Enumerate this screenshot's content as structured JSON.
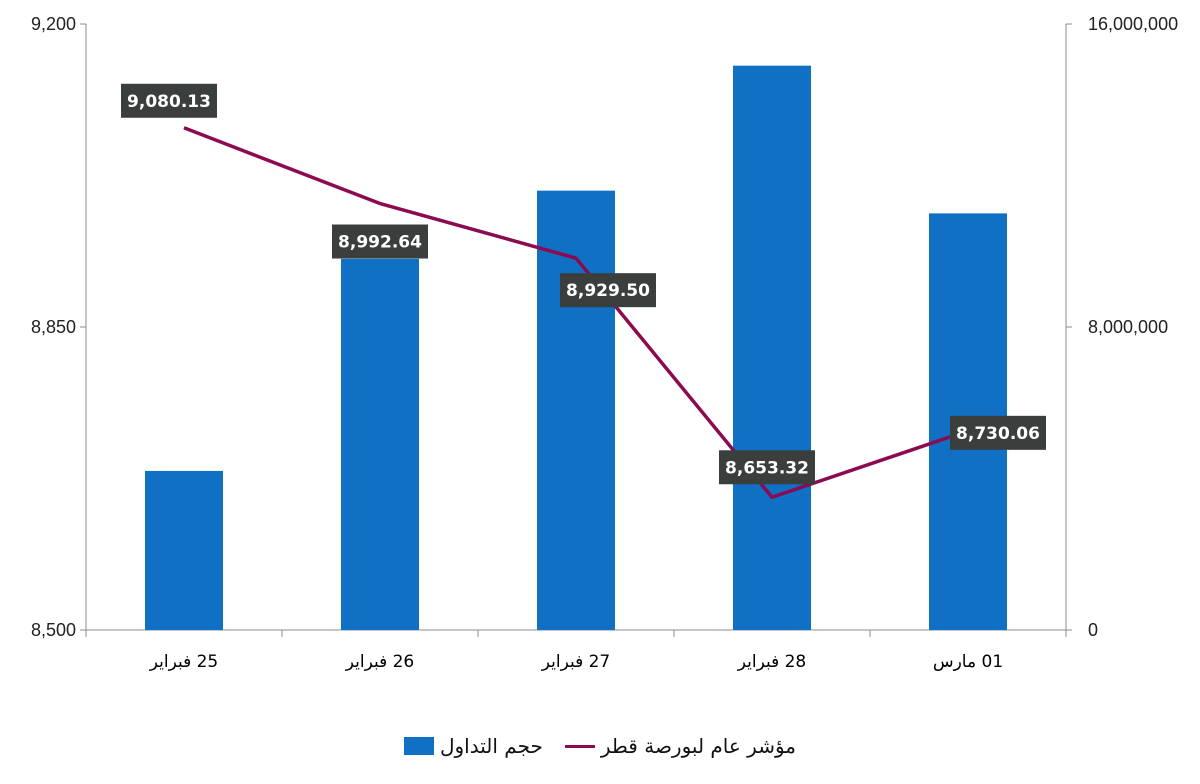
{
  "chart_data": {
    "type": "bar+line",
    "categories": [
      "25 فبراير",
      "26 فبراير",
      "27 فبراير",
      "28 فبراير",
      "01 مارس"
    ],
    "series": [
      {
        "name": "حجم التداول",
        "type": "bar",
        "axis": "right",
        "color": "#1070C4",
        "values": [
          4200000,
          9800000,
          11600000,
          14900000,
          11000000
        ]
      },
      {
        "name": "مؤشر عام لبورصة قطر",
        "type": "line",
        "axis": "left",
        "color": "#8B0A50",
        "values": [
          9080.13,
          8992.64,
          8929.5,
          8653.32,
          8730.06
        ],
        "labels": [
          "9,080.13",
          "8,992.64",
          "8,929.50",
          "8,653.32",
          "8,730.06"
        ]
      }
    ],
    "y_left": {
      "min": 8500,
      "max": 9200,
      "ticks": [
        "8,500",
        "8,850",
        "9,200"
      ]
    },
    "y_right": {
      "min": 0,
      "max": 16000000,
      "ticks": [
        "0",
        "8,000,000",
        "16,000,000"
      ]
    },
    "grid": false,
    "legend_position": "bottom",
    "label_box_color": "#3A3F3D"
  }
}
